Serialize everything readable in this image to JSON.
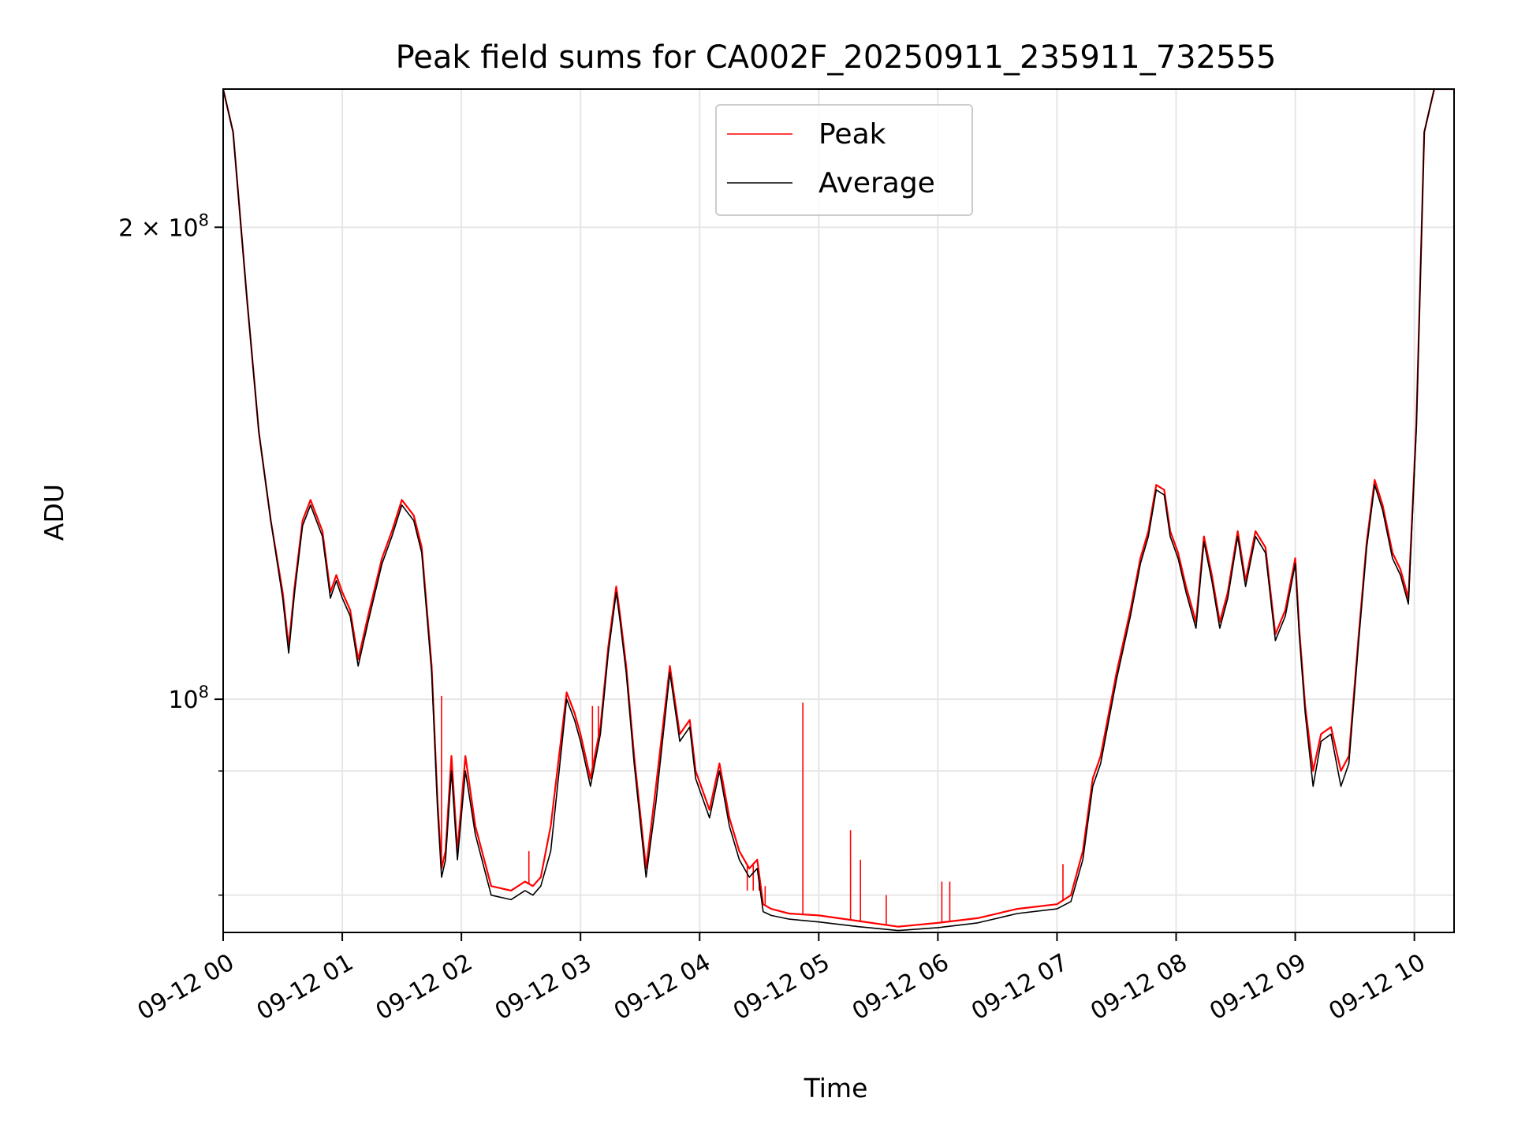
{
  "chart_data": {
    "type": "line",
    "title": "Peak field sums for CA002F_20250911_235911_732555",
    "xlabel": "Time",
    "ylabel": "ADU",
    "y_scale": "log",
    "grid": true,
    "legend_placement": "upper-center",
    "xlim": [
      "2025-09-12 00:00",
      "2025-09-12 10:20"
    ],
    "ylim": [
      71000000,
      245000000
    ],
    "x_ticks": [
      {
        "value": "2025-09-12 00:00",
        "label": "09-12 00"
      },
      {
        "value": "2025-09-12 01:00",
        "label": "09-12 01"
      },
      {
        "value": "2025-09-12 02:00",
        "label": "09-12 02"
      },
      {
        "value": "2025-09-12 03:00",
        "label": "09-12 03"
      },
      {
        "value": "2025-09-12 04:00",
        "label": "09-12 04"
      },
      {
        "value": "2025-09-12 05:00",
        "label": "09-12 05"
      },
      {
        "value": "2025-09-12 06:00",
        "label": "09-12 06"
      },
      {
        "value": "2025-09-12 07:00",
        "label": "09-12 07"
      },
      {
        "value": "2025-09-12 08:00",
        "label": "09-12 08"
      },
      {
        "value": "2025-09-12 09:00",
        "label": "09-12 09"
      },
      {
        "value": "2025-09-12 10:00",
        "label": "09-12 10"
      }
    ],
    "y_major_ticks": [
      {
        "value": 100000000,
        "base": "10",
        "exp": "8",
        "mult": ""
      },
      {
        "value": 200000000,
        "base": "10",
        "exp": "8",
        "mult": "2 × "
      }
    ],
    "y_minor_ticks": [
      75000000,
      90000000
    ],
    "series": [
      {
        "name": "Peak",
        "color": "#ff0000",
        "x": [
          "2025-09-12 00:00",
          "2025-09-12 00:05",
          "2025-09-12 00:12",
          "2025-09-12 00:18",
          "2025-09-12 00:24",
          "2025-09-12 00:30",
          "2025-09-12 00:33",
          "2025-09-12 00:36",
          "2025-09-12 00:40",
          "2025-09-12 00:44",
          "2025-09-12 00:50",
          "2025-09-12 00:54",
          "2025-09-12 00:57",
          "2025-09-12 01:00",
          "2025-09-12 01:04",
          "2025-09-12 01:08",
          "2025-09-12 01:13",
          "2025-09-12 01:20",
          "2025-09-12 01:25",
          "2025-09-12 01:30",
          "2025-09-12 01:36",
          "2025-09-12 01:40",
          "2025-09-12 01:45",
          "2025-09-12 01:48",
          "2025-09-12 01:50",
          "2025-09-12 01:52",
          "2025-09-12 01:55",
          "2025-09-12 01:58",
          "2025-09-12 02:02",
          "2025-09-12 02:07",
          "2025-09-12 02:15",
          "2025-09-12 02:25",
          "2025-09-12 02:32",
          "2025-09-12 02:36",
          "2025-09-12 02:40",
          "2025-09-12 02:45",
          "2025-09-12 02:53",
          "2025-09-12 02:57",
          "2025-09-12 03:00",
          "2025-09-12 03:05",
          "2025-09-12 03:10",
          "2025-09-12 03:14",
          "2025-09-12 03:18",
          "2025-09-12 03:20",
          "2025-09-12 03:23",
          "2025-09-12 03:27",
          "2025-09-12 03:33",
          "2025-09-12 03:38",
          "2025-09-12 03:45",
          "2025-09-12 03:50",
          "2025-09-12 03:55",
          "2025-09-12 03:58",
          "2025-09-12 04:05",
          "2025-09-12 04:10",
          "2025-09-12 04:15",
          "2025-09-12 04:20",
          "2025-09-12 04:25",
          "2025-09-12 04:29",
          "2025-09-12 04:32",
          "2025-09-12 04:36",
          "2025-09-12 04:45",
          "2025-09-12 05:00",
          "2025-09-12 05:20",
          "2025-09-12 05:40",
          "2025-09-12 06:00",
          "2025-09-12 06:20",
          "2025-09-12 06:40",
          "2025-09-12 07:00",
          "2025-09-12 07:07",
          "2025-09-12 07:13",
          "2025-09-12 07:18",
          "2025-09-12 07:22",
          "2025-09-12 07:30",
          "2025-09-12 07:37",
          "2025-09-12 07:42",
          "2025-09-12 07:46",
          "2025-09-12 07:50",
          "2025-09-12 07:54",
          "2025-09-12 07:57",
          "2025-09-12 08:01",
          "2025-09-12 08:05",
          "2025-09-12 08:10",
          "2025-09-12 08:14",
          "2025-09-12 08:18",
          "2025-09-12 08:22",
          "2025-09-12 08:26",
          "2025-09-12 08:31",
          "2025-09-12 08:35",
          "2025-09-12 08:40",
          "2025-09-12 08:45",
          "2025-09-12 08:50",
          "2025-09-12 08:55",
          "2025-09-12 09:00",
          "2025-09-12 09:02",
          "2025-09-12 09:05",
          "2025-09-12 09:09",
          "2025-09-12 09:13",
          "2025-09-12 09:18",
          "2025-09-12 09:23",
          "2025-09-12 09:27",
          "2025-09-12 09:32",
          "2025-09-12 09:36",
          "2025-09-12 09:40",
          "2025-09-12 09:44",
          "2025-09-12 09:49",
          "2025-09-12 09:53",
          "2025-09-12 09:57",
          "2025-09-12 10:01",
          "2025-09-12 10:05",
          "2025-09-12 10:10",
          "2025-09-12 10:20"
        ],
        "y": [
          245000000,
          230000000,
          180000000,
          148000000,
          130000000,
          117000000,
          108000000,
          118000000,
          130000000,
          134000000,
          128000000,
          117000000,
          120000000,
          117000000,
          114000000,
          106000000,
          113000000,
          123000000,
          128000000,
          134000000,
          131000000,
          125000000,
          105000000,
          86000000,
          78000000,
          80000000,
          92000000,
          80000000,
          92000000,
          83000000,
          76000000,
          75500000,
          76500000,
          76000000,
          77000000,
          83000000,
          101000000,
          98000000,
          95000000,
          89000000,
          96000000,
          108000000,
          118000000,
          113000000,
          105000000,
          92000000,
          78000000,
          88000000,
          105000000,
          95000000,
          97000000,
          90000000,
          85000000,
          91000000,
          84000000,
          80000000,
          78000000,
          79000000,
          74000000,
          73500000,
          73000000,
          72800000,
          72200000,
          71600000,
          72000000,
          72500000,
          73500000,
          74000000,
          75000000,
          80000000,
          89000000,
          92000000,
          104000000,
          114000000,
          123000000,
          128000000,
          137000000,
          136000000,
          128000000,
          124000000,
          118000000,
          112000000,
          127000000,
          120000000,
          112000000,
          117000000,
          128000000,
          119000000,
          128000000,
          125000000,
          110000000,
          114000000,
          123000000,
          111000000,
          99000000,
          90000000,
          95000000,
          96000000,
          90000000,
          92000000,
          110000000,
          126000000,
          138000000,
          133000000,
          124000000,
          121000000,
          116000000,
          150000000,
          230000000,
          245000000,
          245000000
        ]
      },
      {
        "name": "Average",
        "color": "#000000",
        "x": [
          "2025-09-12 00:00",
          "2025-09-12 00:05",
          "2025-09-12 00:12",
          "2025-09-12 00:18",
          "2025-09-12 00:24",
          "2025-09-12 00:30",
          "2025-09-12 00:33",
          "2025-09-12 00:36",
          "2025-09-12 00:40",
          "2025-09-12 00:44",
          "2025-09-12 00:50",
          "2025-09-12 00:54",
          "2025-09-12 00:57",
          "2025-09-12 01:00",
          "2025-09-12 01:04",
          "2025-09-12 01:08",
          "2025-09-12 01:13",
          "2025-09-12 01:20",
          "2025-09-12 01:25",
          "2025-09-12 01:30",
          "2025-09-12 01:36",
          "2025-09-12 01:40",
          "2025-09-12 01:45",
          "2025-09-12 01:48",
          "2025-09-12 01:50",
          "2025-09-12 01:52",
          "2025-09-12 01:55",
          "2025-09-12 01:58",
          "2025-09-12 02:02",
          "2025-09-12 02:07",
          "2025-09-12 02:15",
          "2025-09-12 02:25",
          "2025-09-12 02:32",
          "2025-09-12 02:36",
          "2025-09-12 02:40",
          "2025-09-12 02:45",
          "2025-09-12 02:53",
          "2025-09-12 02:57",
          "2025-09-12 03:00",
          "2025-09-12 03:05",
          "2025-09-12 03:10",
          "2025-09-12 03:14",
          "2025-09-12 03:18",
          "2025-09-12 03:20",
          "2025-09-12 03:23",
          "2025-09-12 03:27",
          "2025-09-12 03:33",
          "2025-09-12 03:38",
          "2025-09-12 03:45",
          "2025-09-12 03:50",
          "2025-09-12 03:55",
          "2025-09-12 03:58",
          "2025-09-12 04:05",
          "2025-09-12 04:10",
          "2025-09-12 04:15",
          "2025-09-12 04:20",
          "2025-09-12 04:25",
          "2025-09-12 04:29",
          "2025-09-12 04:32",
          "2025-09-12 04:36",
          "2025-09-12 04:45",
          "2025-09-12 05:00",
          "2025-09-12 05:20",
          "2025-09-12 05:40",
          "2025-09-12 06:00",
          "2025-09-12 06:20",
          "2025-09-12 06:40",
          "2025-09-12 07:00",
          "2025-09-12 07:07",
          "2025-09-12 07:13",
          "2025-09-12 07:18",
          "2025-09-12 07:22",
          "2025-09-12 07:30",
          "2025-09-12 07:37",
          "2025-09-12 07:42",
          "2025-09-12 07:46",
          "2025-09-12 07:50",
          "2025-09-12 07:54",
          "2025-09-12 07:57",
          "2025-09-12 08:01",
          "2025-09-12 08:05",
          "2025-09-12 08:10",
          "2025-09-12 08:14",
          "2025-09-12 08:18",
          "2025-09-12 08:22",
          "2025-09-12 08:26",
          "2025-09-12 08:31",
          "2025-09-12 08:35",
          "2025-09-12 08:40",
          "2025-09-12 08:45",
          "2025-09-12 08:50",
          "2025-09-12 08:55",
          "2025-09-12 09:00",
          "2025-09-12 09:02",
          "2025-09-12 09:05",
          "2025-09-12 09:09",
          "2025-09-12 09:13",
          "2025-09-12 09:18",
          "2025-09-12 09:23",
          "2025-09-12 09:27",
          "2025-09-12 09:32",
          "2025-09-12 09:36",
          "2025-09-12 09:40",
          "2025-09-12 09:44",
          "2025-09-12 09:49",
          "2025-09-12 09:53",
          "2025-09-12 09:57",
          "2025-09-12 10:01",
          "2025-09-12 10:05",
          "2025-09-12 10:10",
          "2025-09-12 10:20"
        ],
        "y": [
          245000000,
          230000000,
          180000000,
          148000000,
          130000000,
          116000000,
          107000000,
          117000000,
          129000000,
          133000000,
          127000000,
          116000000,
          119000000,
          116000000,
          113000000,
          105000000,
          112000000,
          122000000,
          127000000,
          133000000,
          130000000,
          124000000,
          104000000,
          85000000,
          77000000,
          79000000,
          90000000,
          79000000,
          90000000,
          82000000,
          75000000,
          74500000,
          75500000,
          75000000,
          76000000,
          80000000,
          100000000,
          97000000,
          94000000,
          88000000,
          95000000,
          107000000,
          117000000,
          112000000,
          104000000,
          91000000,
          77000000,
          86000000,
          104000000,
          94000000,
          96000000,
          89000000,
          84000000,
          90000000,
          83000000,
          79000000,
          77000000,
          78000000,
          73200000,
          72800000,
          72400000,
          72100000,
          71600000,
          71200000,
          71500000,
          72000000,
          73000000,
          73500000,
          74300000,
          79000000,
          88000000,
          91000000,
          103000000,
          113000000,
          122000000,
          127000000,
          136000000,
          135000000,
          127000000,
          123000000,
          117000000,
          111000000,
          126000000,
          119000000,
          111000000,
          116000000,
          127000000,
          118000000,
          127000000,
          124000000,
          109000000,
          113000000,
          122000000,
          110000000,
          98000000,
          88000000,
          94000000,
          95000000,
          88000000,
          91000000,
          109000000,
          125000000,
          137000000,
          132000000,
          123000000,
          120000000,
          115000000,
          149000000,
          230000000,
          245000000,
          245000000
        ]
      }
    ],
    "spikes": [
      {
        "x": "2025-09-12 01:50",
        "y": 100500000
      },
      {
        "x": "2025-09-12 02:34",
        "y": 80000000
      },
      {
        "x": "2025-09-12 03:06",
        "y": 99000000
      },
      {
        "x": "2025-09-12 03:09",
        "y": 99000000
      },
      {
        "x": "2025-09-12 03:36",
        "y": 84000000
      },
      {
        "x": "2025-09-12 04:24",
        "y": 75500000
      },
      {
        "x": "2025-09-12 04:27",
        "y": 75500000
      },
      {
        "x": "2025-09-12 04:30",
        "y": 75500000
      },
      {
        "x": "2025-09-12 04:33",
        "y": 76000000
      },
      {
        "x": "2025-09-12 04:52",
        "y": 99500000
      },
      {
        "x": "2025-09-12 05:16",
        "y": 82500000
      },
      {
        "x": "2025-09-12 05:21",
        "y": 79000000
      },
      {
        "x": "2025-09-12 05:34",
        "y": 75000000
      },
      {
        "x": "2025-09-12 06:02",
        "y": 76500000
      },
      {
        "x": "2025-09-12 06:06",
        "y": 76500000
      },
      {
        "x": "2025-09-12 07:03",
        "y": 78500000
      }
    ]
  },
  "legend": {
    "items": [
      {
        "label": "Peak",
        "color": "#ff0000"
      },
      {
        "label": "Average",
        "color": "#000000"
      }
    ]
  }
}
